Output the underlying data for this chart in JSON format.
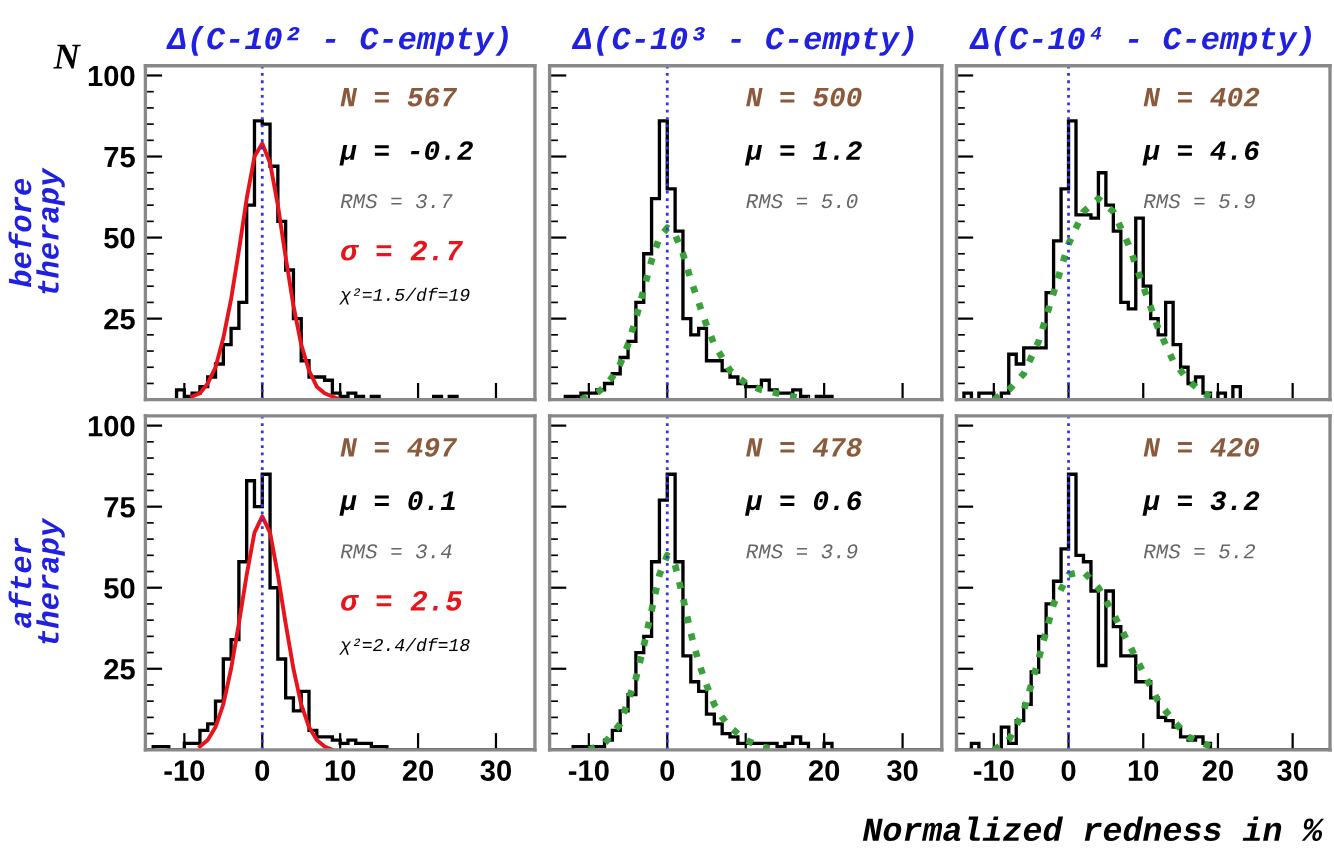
{
  "chart_data": [
    {
      "type": "histogram",
      "title": "Δ(C-10² - C-empty)",
      "ylabel": "before\ntherapy",
      "xlim": [
        -15,
        35
      ],
      "ylim": [
        0,
        103
      ],
      "xticks": [
        -10,
        0,
        10,
        20,
        30
      ],
      "yticks": [
        25,
        50,
        75,
        100
      ],
      "tick_labels": "y",
      "ref_lines": [
        {
          "axis": "x",
          "value": 0,
          "color": "#3333ee",
          "line_style": "dotted"
        }
      ],
      "annotations": [
        "N = 567",
        "μ = -0.2",
        "RMS = 3.7",
        "σ = 2.7",
        "χ²=1.5/df=19",
        "N"
      ],
      "series": [
        {
          "type": "histogram",
          "color": "#000000",
          "bins": [
            -15,
            -14,
            -13,
            -12,
            -11,
            -10,
            -9,
            -8,
            -7,
            -6,
            -5,
            -4,
            -3,
            -2,
            -1,
            0,
            1,
            2,
            3,
            4,
            5,
            6,
            7,
            8,
            9,
            10,
            11,
            12,
            13,
            14,
            15,
            16,
            17,
            18,
            19,
            20,
            21,
            22,
            23,
            24,
            25,
            26,
            27,
            28,
            29,
            30,
            31,
            32,
            33,
            34,
            35
          ],
          "values": [
            0,
            0,
            0,
            0,
            3,
            1,
            2,
            4,
            7,
            11,
            17,
            22,
            30,
            60,
            86,
            85,
            72,
            55,
            40,
            25,
            12,
            7,
            7,
            6,
            2,
            1,
            2,
            1,
            0,
            1,
            0,
            0,
            0,
            0,
            0,
            0,
            0,
            1,
            0,
            1,
            0,
            0,
            0,
            0,
            0,
            0,
            0,
            0,
            0,
            0
          ]
        },
        {
          "type": "line",
          "color": "#e8141b",
          "line_style": "solid",
          "x": [
            -9,
            -8,
            -7,
            -6,
            -5,
            -4,
            -3,
            -2,
            -1,
            0,
            1,
            2,
            3,
            4,
            5,
            6,
            7,
            8,
            9,
            10
          ],
          "values": [
            1,
            2,
            5,
            10,
            19,
            31,
            46,
            62,
            75,
            79,
            73,
            60,
            44,
            29,
            17,
            9,
            4,
            2,
            1,
            0
          ]
        }
      ]
    },
    {
      "type": "histogram",
      "title": "Δ(C-10³ - C-empty)",
      "xlim": [
        -15,
        35
      ],
      "ylim": [
        0,
        103
      ],
      "xticks": [
        -10,
        0,
        10,
        20,
        30
      ],
      "yticks": [
        25,
        50,
        75,
        100
      ],
      "tick_labels": false,
      "ref_lines": [
        {
          "axis": "x",
          "value": 0,
          "color": "#3333ee",
          "line_style": "dotted"
        }
      ],
      "annotations": [
        "N = 500",
        "μ = 1.2",
        "RMS = 5.0"
      ],
      "series": [
        {
          "type": "histogram",
          "color": "#000000",
          "bins": [
            -15,
            -14,
            -13,
            -12,
            -11,
            -10,
            -9,
            -8,
            -7,
            -6,
            -5,
            -4,
            -3,
            -2,
            -1,
            0,
            1,
            2,
            3,
            4,
            5,
            6,
            7,
            8,
            9,
            10,
            11,
            12,
            13,
            14,
            15,
            16,
            17,
            18,
            19,
            20,
            21,
            22,
            23,
            24,
            25,
            26,
            27,
            28,
            29,
            30,
            31,
            32,
            33,
            34,
            35
          ],
          "values": [
            0,
            0,
            1,
            1,
            2,
            2,
            3,
            5,
            8,
            13,
            18,
            30,
            45,
            62,
            86,
            65,
            52,
            25,
            20,
            22,
            12,
            12,
            9,
            7,
            5,
            4,
            4,
            6,
            3,
            2,
            2,
            3,
            1,
            0,
            1,
            1,
            0,
            0,
            0,
            0,
            0,
            0,
            0,
            0,
            0,
            0,
            0,
            0,
            0,
            0
          ]
        },
        {
          "type": "line",
          "color": "#3aa03a",
          "line_style": "dotted",
          "x": [
            -11,
            -10,
            -9,
            -8,
            -7,
            -6,
            -5,
            -4,
            -3,
            -2,
            -1,
            0,
            1,
            2,
            3,
            4,
            5,
            6,
            7,
            8,
            9,
            10,
            12,
            14,
            16,
            18
          ],
          "values": [
            0,
            1,
            2,
            4,
            7,
            11,
            17,
            25,
            34,
            43,
            50,
            53,
            51,
            45,
            37,
            30,
            23,
            17,
            13,
            9,
            7,
            5,
            3,
            2,
            1,
            0
          ]
        }
      ]
    },
    {
      "type": "histogram",
      "title": "Δ(C-10⁴ - C-empty)",
      "xlim": [
        -15,
        35
      ],
      "ylim": [
        0,
        103
      ],
      "xticks": [
        -10,
        0,
        10,
        20,
        30
      ],
      "yticks": [
        25,
        50,
        75,
        100
      ],
      "tick_labels": false,
      "ref_lines": [
        {
          "axis": "x",
          "value": 0,
          "color": "#3333ee",
          "line_style": "dotted"
        }
      ],
      "annotations": [
        "N = 402",
        "μ = 4.6",
        "RMS = 5.9"
      ],
      "series": [
        {
          "type": "histogram",
          "color": "#000000",
          "bins": [
            -15,
            -14,
            -13,
            -12,
            -11,
            -10,
            -9,
            -8,
            -7,
            -6,
            -5,
            -4,
            -3,
            -2,
            -1,
            0,
            1,
            2,
            3,
            4,
            5,
            6,
            7,
            8,
            9,
            10,
            11,
            12,
            13,
            14,
            15,
            16,
            17,
            18,
            19,
            20,
            21,
            22,
            23,
            24,
            25,
            26,
            27,
            28,
            29,
            30,
            31,
            32,
            33,
            34,
            35
          ],
          "values": [
            0,
            2,
            0,
            2,
            2,
            0,
            2,
            14,
            11,
            16,
            16,
            16,
            33,
            49,
            65,
            86,
            57,
            57,
            56,
            70,
            60,
            52,
            30,
            28,
            56,
            35,
            25,
            20,
            30,
            17,
            10,
            5,
            7,
            2,
            0,
            2,
            0,
            4,
            0,
            0,
            0,
            0,
            0,
            0,
            0,
            0,
            0,
            0,
            0,
            0
          ]
        },
        {
          "type": "line",
          "color": "#3aa03a",
          "line_style": "dotted",
          "x": [
            -10,
            -8,
            -6,
            -4,
            -2,
            0,
            2,
            4,
            6,
            8,
            10,
            12,
            14,
            16,
            18,
            20
          ],
          "values": [
            0,
            3,
            8,
            18,
            33,
            48,
            58,
            62,
            58,
            48,
            35,
            22,
            12,
            6,
            2,
            0
          ]
        }
      ]
    },
    {
      "type": "histogram",
      "ylabel": "after\ntherapy",
      "xlim": [
        -15,
        35
      ],
      "ylim": [
        0,
        103
      ],
      "xticks": [
        -10,
        0,
        10,
        20,
        30
      ],
      "yticks": [
        25,
        50,
        75,
        100
      ],
      "ref_lines": [
        {
          "axis": "x",
          "value": 0,
          "color": "#3333ee",
          "line_style": "dotted"
        }
      ],
      "annotations": [
        "N = 497",
        "μ = 0.1",
        "RMS = 3.4",
        "σ = 2.5",
        "χ²=2.4/df=18"
      ],
      "series": [
        {
          "type": "histogram",
          "color": "#000000",
          "bins": [
            -15,
            -14,
            -13,
            -12,
            -11,
            -10,
            -9,
            -8,
            -7,
            -6,
            -5,
            -4,
            -3,
            -2,
            -1,
            0,
            1,
            2,
            3,
            4,
            5,
            6,
            7,
            8,
            9,
            10,
            11,
            12,
            13,
            14,
            15,
            16,
            17,
            18,
            19,
            20,
            21,
            22,
            23,
            24,
            25,
            26,
            27,
            28,
            29,
            30,
            31,
            32,
            33,
            34,
            35
          ],
          "values": [
            0,
            1,
            1,
            0,
            0,
            2,
            2,
            6,
            8,
            15,
            28,
            34,
            58,
            83,
            75,
            85,
            50,
            28,
            16,
            12,
            18,
            6,
            4,
            4,
            3,
            2,
            3,
            2,
            2,
            1,
            1,
            0,
            0,
            0,
            0,
            0,
            0,
            0,
            0,
            0,
            0,
            0,
            0,
            0,
            0,
            0,
            0,
            0,
            0,
            0
          ]
        },
        {
          "type": "line",
          "color": "#e8141b",
          "line_style": "solid",
          "x": [
            -8,
            -7,
            -6,
            -5,
            -4,
            -3,
            -2,
            -1,
            0,
            1,
            2,
            3,
            4,
            5,
            6,
            7,
            8,
            9
          ],
          "values": [
            1,
            3,
            7,
            14,
            25,
            39,
            54,
            67,
            72,
            67,
            54,
            39,
            25,
            14,
            7,
            3,
            1,
            0
          ]
        }
      ]
    },
    {
      "type": "histogram",
      "xlim": [
        -15,
        35
      ],
      "ylim": [
        0,
        103
      ],
      "xticks": [
        -10,
        0,
        10,
        20,
        30
      ],
      "yticks": [
        25,
        50,
        75,
        100
      ],
      "tick_labels": "x",
      "ref_lines": [
        {
          "axis": "x",
          "value": 0,
          "color": "#3333ee",
          "line_style": "dotted"
        }
      ],
      "annotations": [
        "N = 478",
        "μ = 0.6",
        "RMS = 3.9"
      ],
      "series": [
        {
          "type": "histogram",
          "color": "#000000",
          "bins": [
            -15,
            -14,
            -13,
            -12,
            -11,
            -10,
            -9,
            -8,
            -7,
            -6,
            -5,
            -4,
            -3,
            -2,
            -1,
            0,
            1,
            2,
            3,
            4,
            5,
            6,
            7,
            8,
            9,
            10,
            11,
            12,
            13,
            14,
            15,
            16,
            17,
            18,
            19,
            20,
            21,
            22,
            23,
            24,
            25,
            26,
            27,
            28,
            29,
            30,
            31,
            32,
            33,
            34,
            35
          ],
          "values": [
            0,
            0,
            0,
            1,
            1,
            1,
            1,
            3,
            6,
            12,
            17,
            30,
            35,
            58,
            77,
            85,
            58,
            29,
            21,
            18,
            11,
            8,
            5,
            4,
            2,
            2,
            2,
            2,
            2,
            1,
            2,
            4,
            2,
            0,
            0,
            2,
            0,
            0,
            0,
            0,
            0,
            0,
            0,
            0,
            0,
            0,
            0,
            0,
            0,
            0
          ]
        },
        {
          "type": "line",
          "color": "#3aa03a",
          "line_style": "dotted",
          "x": [
            -10,
            -8,
            -6,
            -4,
            -3,
            -2,
            -1,
            0,
            1,
            2,
            3,
            4,
            5,
            6,
            7,
            8,
            10,
            12,
            14
          ],
          "values": [
            0,
            2,
            8,
            22,
            32,
            43,
            54,
            60,
            57,
            47,
            36,
            27,
            20,
            14,
            10,
            7,
            3,
            1,
            0
          ]
        }
      ]
    },
    {
      "type": "histogram",
      "xlabel": "Normalized redness in %",
      "xlim": [
        -15,
        35
      ],
      "ylim": [
        0,
        103
      ],
      "xticks": [
        -10,
        0,
        10,
        20,
        30
      ],
      "yticks": [
        25,
        50,
        75,
        100
      ],
      "tick_labels": "x",
      "ref_lines": [
        {
          "axis": "x",
          "value": 0,
          "color": "#3333ee",
          "line_style": "dotted"
        }
      ],
      "annotations": [
        "N = 420",
        "μ = 3.2",
        "RMS = 5.2"
      ],
      "series": [
        {
          "type": "histogram",
          "color": "#000000",
          "bins": [
            -15,
            -14,
            -13,
            -12,
            -11,
            -10,
            -9,
            -8,
            -7,
            -6,
            -5,
            -4,
            -3,
            -2,
            -1,
            0,
            1,
            2,
            3,
            4,
            5,
            6,
            7,
            8,
            9,
            10,
            11,
            12,
            13,
            14,
            15,
            16,
            17,
            18,
            19,
            20,
            21,
            22,
            23,
            24,
            25,
            26,
            27,
            28,
            29,
            30,
            31,
            32,
            33,
            34,
            35
          ],
          "values": [
            0,
            0,
            2,
            0,
            0,
            0,
            7,
            2,
            9,
            14,
            24,
            35,
            45,
            52,
            62,
            85,
            60,
            58,
            49,
            26,
            49,
            38,
            29,
            29,
            21,
            21,
            16,
            10,
            9,
            7,
            4,
            3,
            4,
            2,
            0,
            0,
            0,
            0,
            0,
            0,
            0,
            0,
            0,
            0,
            0,
            0,
            0,
            0,
            0,
            0
          ]
        },
        {
          "type": "line",
          "color": "#3aa03a",
          "line_style": "dotted",
          "x": [
            -10,
            -8,
            -6,
            -4,
            -2,
            0,
            2,
            4,
            6,
            8,
            10,
            12,
            14,
            16,
            18,
            20
          ],
          "values": [
            0,
            3,
            12,
            28,
            45,
            54,
            55,
            50,
            42,
            33,
            24,
            15,
            9,
            4,
            2,
            0
          ]
        }
      ]
    }
  ]
}
